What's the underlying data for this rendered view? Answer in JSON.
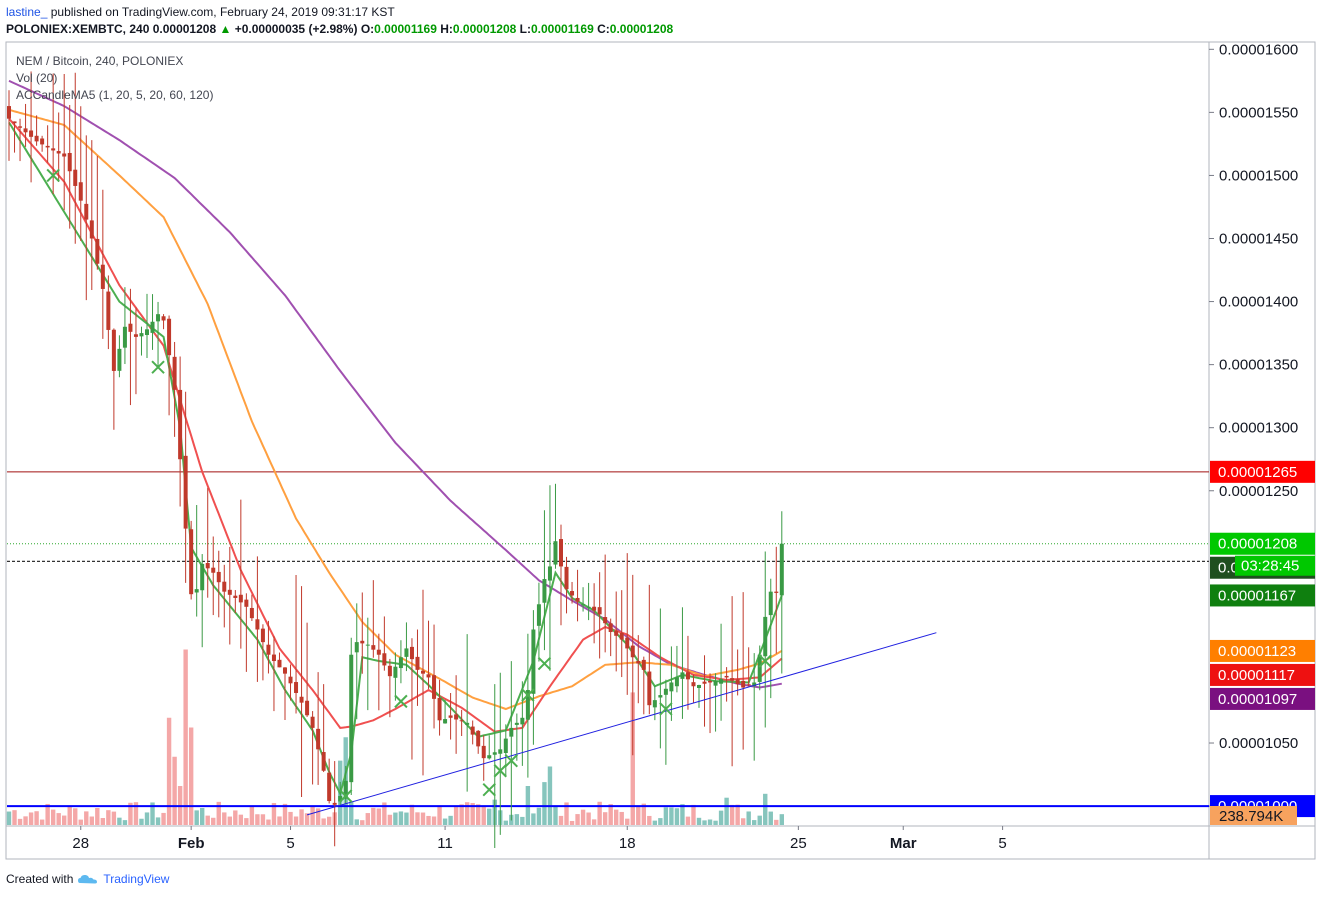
{
  "header": {
    "author": "lastine_",
    "published_text": "published on TradingView.com, February 24, 2019 09:31:17 KST"
  },
  "ohlc_bar": {
    "symbol": "POLONIEX:XEMBTC, 240",
    "last": "0.00001208",
    "change": "+0.00000035 (+2.98%)",
    "o_label": "O:",
    "o": "0.00001169",
    "h_label": "H:",
    "h": "0.00001208",
    "l_label": "L:",
    "l": "0.00001169",
    "c_label": "C:",
    "c": "0.00001208"
  },
  "legend": [
    "NEM / Bitcoin, 240, POLONIEX",
    "Vol (20)",
    "ACCandleMA5 (1, 20, 5, 20, 60, 120)"
  ],
  "footer": {
    "created_with": "Created with",
    "brand": "TradingView"
  },
  "colors": {
    "up": "#3a9a45",
    "down": "#c0392b",
    "ma5": "#4caf50",
    "ma20": "#f05050",
    "ma60": "#ffa040",
    "ma120": "#a050b0",
    "trendline": "#2020e0",
    "support": "#0000ff",
    "resistance": "#a01010"
  },
  "chart_data": {
    "type": "candlestick",
    "y_axis": {
      "range": [
        9.85e-06,
        1.605e-05
      ],
      "ticks": [
        "0.00001600",
        "0.00001550",
        "0.00001500",
        "0.00001450",
        "0.00001400",
        "0.00001350",
        "0.00001300",
        "0.00001250",
        "0.00001050",
        "0.00001000"
      ]
    },
    "x_axis": {
      "ticks": [
        {
          "label": "28",
          "bar": 13
        },
        {
          "label": "Feb",
          "bar": 33,
          "bold": true
        },
        {
          "label": "5",
          "bar": 51
        },
        {
          "label": "11",
          "bar": 79
        },
        {
          "label": "18",
          "bar": 112
        },
        {
          "label": "25",
          "bar": 143
        },
        {
          "label": "Mar",
          "bar": 162,
          "bold": true
        },
        {
          "label": "5",
          "bar": 180
        }
      ]
    },
    "price_labels": [
      {
        "value": 1.265e-05,
        "label": "0.00001265",
        "color": "#ff0000"
      },
      {
        "value": 1.208e-05,
        "label": "0.00001208",
        "color": "#00c800"
      },
      {
        "value": 1.194e-05,
        "label": "0.00001194",
        "color": "#1f4f1f"
      },
      {
        "value": 1.167e-05,
        "label": "0.00001167",
        "color": "#0f7f0f"
      },
      {
        "value": 1.123e-05,
        "label": "0.00001123",
        "color": "#ff7f00"
      },
      {
        "value": 1.117e-05,
        "label": "0.00001117",
        "color": "#ee1111"
      },
      {
        "value": 1.097e-05,
        "label": "0.00001097",
        "color": "#7a1080"
      },
      {
        "value": 1e-05,
        "label": "0.00001000",
        "color": "#0000ff"
      }
    ],
    "countdown": "03:28:45",
    "volume_label": "238.794K",
    "horizontal_lines": {
      "resistance": 1.265e-05,
      "support": 1e-05,
      "current": 1.208e-05,
      "dashed": 1.194e-05
    },
    "trendline": {
      "from": {
        "bar": 54,
        "value": 9.93e-06
      },
      "to": {
        "bar": 155,
        "value": 1.121e-05
      }
    },
    "cross_markers": [
      {
        "bar": 8,
        "value": 1.5e-05
      },
      {
        "bar": 27,
        "value": 1.348e-05
      },
      {
        "bar": 61,
        "value": 1.008e-05
      },
      {
        "bar": 71,
        "value": 1.083e-05
      },
      {
        "bar": 87,
        "value": 1.013e-05
      },
      {
        "bar": 89,
        "value": 1.028e-05
      },
      {
        "bar": 91,
        "value": 1.036e-05
      },
      {
        "bar": 94,
        "value": 1.088e-05
      },
      {
        "bar": 97,
        "value": 1.113e-05
      },
      {
        "bar": 119,
        "value": 1.077e-05
      },
      {
        "bar": 137,
        "value": 1.115e-05
      }
    ],
    "anchors": [
      [
        0,
        1.545e-05
      ],
      [
        5,
        1.527e-05
      ],
      [
        10,
        1.515e-05
      ],
      [
        13,
        1.48e-05
      ],
      [
        15,
        1.45e-05
      ],
      [
        17,
        1.41e-05
      ],
      [
        19,
        1.345e-05
      ],
      [
        21,
        1.38e-05
      ],
      [
        23,
        1.372e-05
      ],
      [
        25,
        1.378e-05
      ],
      [
        27,
        1.39e-05
      ],
      [
        28,
        1.385e-05
      ],
      [
        30,
        1.33e-05
      ],
      [
        31,
        1.275e-05
      ],
      [
        32,
        1.22e-05
      ],
      [
        33,
        1.168e-05
      ],
      [
        34,
        1.172e-05
      ],
      [
        35,
        1.192e-05
      ],
      [
        37,
        1.185e-05
      ],
      [
        39,
        1.17e-05
      ],
      [
        41,
        1.165e-05
      ],
      [
        43,
        1.158e-05
      ],
      [
        45,
        1.14e-05
      ],
      [
        47,
        1.12e-05
      ],
      [
        50,
        1.105e-05
      ],
      [
        53,
        1.082e-05
      ],
      [
        55,
        1.062e-05
      ],
      [
        57,
        1.028e-05
      ],
      [
        58,
        1.004e-05
      ],
      [
        59,
        1.001e-05
      ],
      [
        60,
        1.008e-05
      ],
      [
        61,
        1.02e-05
      ],
      [
        62,
        1.12e-05
      ],
      [
        63,
        1.13e-05
      ],
      [
        65,
        1.128e-05
      ],
      [
        67,
        1.12e-05
      ],
      [
        69,
        1.103e-05
      ],
      [
        71,
        1.118e-05
      ],
      [
        72,
        1.125e-05
      ],
      [
        74,
        1.108e-05
      ],
      [
        76,
        1.102e-05
      ],
      [
        78,
        1.068e-05
      ],
      [
        80,
        1.07e-05
      ],
      [
        83,
        1.066e-05
      ],
      [
        86,
        1.038e-05
      ],
      [
        89,
        1.045e-05
      ],
      [
        91,
        1.062e-05
      ],
      [
        93,
        1.07e-05
      ],
      [
        94,
        1.092e-05
      ],
      [
        95,
        1.14e-05
      ],
      [
        97,
        1.18e-05
      ],
      [
        98,
        1.19e-05
      ],
      [
        99,
        1.21e-05
      ],
      [
        100,
        1.19e-05
      ],
      [
        101,
        1.172e-05
      ],
      [
        103,
        1.162e-05
      ],
      [
        105,
        1.158e-05
      ],
      [
        107,
        1.152e-05
      ],
      [
        109,
        1.138e-05
      ],
      [
        111,
        1.132e-05
      ],
      [
        113,
        1.118e-05
      ],
      [
        115,
        1.108e-05
      ],
      [
        116,
        1.08e-05
      ],
      [
        118,
        1.088e-05
      ],
      [
        120,
        1.098e-05
      ],
      [
        122,
        1.106e-05
      ],
      [
        124,
        1.095e-05
      ],
      [
        127,
        1.098e-05
      ],
      [
        130,
        1.102e-05
      ],
      [
        133,
        1.094e-05
      ],
      [
        135,
        1.098e-05
      ],
      [
        136,
        1.12e-05
      ],
      [
        137,
        1.15e-05
      ],
      [
        138,
        1.17e-05
      ],
      [
        139,
        1.169e-05
      ],
      [
        140,
        1.208e-05
      ]
    ],
    "ma_anchors": {
      "ma5": [
        [
          0,
          1.542e-05
        ],
        [
          20,
          1.4e-05
        ],
        [
          28,
          1.372e-05
        ],
        [
          31,
          1.3e-05
        ],
        [
          33,
          1.205e-05
        ],
        [
          37,
          1.175e-05
        ],
        [
          45,
          1.132e-05
        ],
        [
          50,
          1.092e-05
        ],
        [
          55,
          1.06e-05
        ],
        [
          58,
          1.027e-05
        ],
        [
          60,
          1.01e-05
        ],
        [
          62,
          1.042e-05
        ],
        [
          64,
          1.118e-05
        ],
        [
          67,
          1.115e-05
        ],
        [
          72,
          1.112e-05
        ],
        [
          76,
          1.096e-05
        ],
        [
          80,
          1.078e-05
        ],
        [
          85,
          1.055e-05
        ],
        [
          90,
          1.06e-05
        ],
        [
          95,
          1.115e-05
        ],
        [
          99,
          1.185e-05
        ],
        [
          102,
          1.165e-05
        ],
        [
          106,
          1.155e-05
        ],
        [
          112,
          1.128e-05
        ],
        [
          117,
          1.095e-05
        ],
        [
          122,
          1.104e-05
        ],
        [
          128,
          1.099e-05
        ],
        [
          134,
          1.098e-05
        ],
        [
          137,
          1.132e-05
        ],
        [
          140,
          1.167e-05
        ]
      ],
      "ma20": [
        [
          0,
          1.545e-05
        ],
        [
          10,
          1.495e-05
        ],
        [
          20,
          1.413e-05
        ],
        [
          28,
          1.365e-05
        ],
        [
          35,
          1.265e-05
        ],
        [
          42,
          1.187e-05
        ],
        [
          49,
          1.125e-05
        ],
        [
          55,
          1.092e-05
        ],
        [
          60,
          1.062e-05
        ],
        [
          62,
          1.063e-05
        ],
        [
          66,
          1.068e-05
        ],
        [
          70,
          1.077e-05
        ],
        [
          76,
          1.092e-05
        ],
        [
          82,
          1.078e-05
        ],
        [
          88,
          1.059e-05
        ],
        [
          93,
          1.062e-05
        ],
        [
          98,
          1.095e-05
        ],
        [
          104,
          1.132e-05
        ],
        [
          108,
          1.142e-05
        ],
        [
          112,
          1.136e-05
        ],
        [
          118,
          1.118e-05
        ],
        [
          124,
          1.104e-05
        ],
        [
          130,
          1.1e-05
        ],
        [
          136,
          1.102e-05
        ],
        [
          140,
          1.117e-05
        ]
      ],
      "ma60": [
        [
          0,
          1.552e-05
        ],
        [
          10,
          1.54e-05
        ],
        [
          20,
          1.5e-05
        ],
        [
          28,
          1.467e-05
        ],
        [
          36,
          1.398e-05
        ],
        [
          44,
          1.305e-05
        ],
        [
          52,
          1.228e-05
        ],
        [
          58,
          1.185e-05
        ],
        [
          64,
          1.146e-05
        ],
        [
          70,
          1.12e-05
        ],
        [
          78,
          1.101e-05
        ],
        [
          84,
          1.086e-05
        ],
        [
          90,
          1.077e-05
        ],
        [
          96,
          1.087e-05
        ],
        [
          102,
          1.095e-05
        ],
        [
          108,
          1.112e-05
        ],
        [
          114,
          1.114e-05
        ],
        [
          120,
          1.112e-05
        ],
        [
          126,
          1.103e-05
        ],
        [
          132,
          1.108e-05
        ],
        [
          136,
          1.113e-05
        ],
        [
          140,
          1.123e-05
        ]
      ],
      "ma120": [
        [
          0,
          1.575e-05
        ],
        [
          10,
          1.555e-05
        ],
        [
          20,
          1.528e-05
        ],
        [
          30,
          1.498e-05
        ],
        [
          40,
          1.455e-05
        ],
        [
          50,
          1.405e-05
        ],
        [
          60,
          1.345e-05
        ],
        [
          70,
          1.288e-05
        ],
        [
          80,
          1.242e-05
        ],
        [
          90,
          1.203e-05
        ],
        [
          96,
          1.179e-05
        ],
        [
          102,
          1.163e-05
        ],
        [
          108,
          1.148e-05
        ],
        [
          114,
          1.127e-05
        ],
        [
          120,
          1.112e-05
        ],
        [
          126,
          1.104e-05
        ],
        [
          132,
          1.097e-05
        ],
        [
          136,
          1.094e-05
        ],
        [
          140,
          1.097e-05
        ]
      ]
    },
    "volume_spikes": [
      [
        29,
        0.55
      ],
      [
        30,
        0.35
      ],
      [
        31,
        0.2
      ],
      [
        32,
        0.9
      ],
      [
        33,
        0.5
      ],
      [
        60,
        0.33
      ],
      [
        61,
        0.45
      ],
      [
        62,
        0.12
      ],
      [
        94,
        0.2
      ],
      [
        97,
        0.22
      ],
      [
        98,
        0.3
      ],
      [
        113,
        0.68
      ],
      [
        137,
        0.16
      ],
      [
        130,
        0.14
      ],
      [
        88,
        0.13
      ]
    ]
  }
}
